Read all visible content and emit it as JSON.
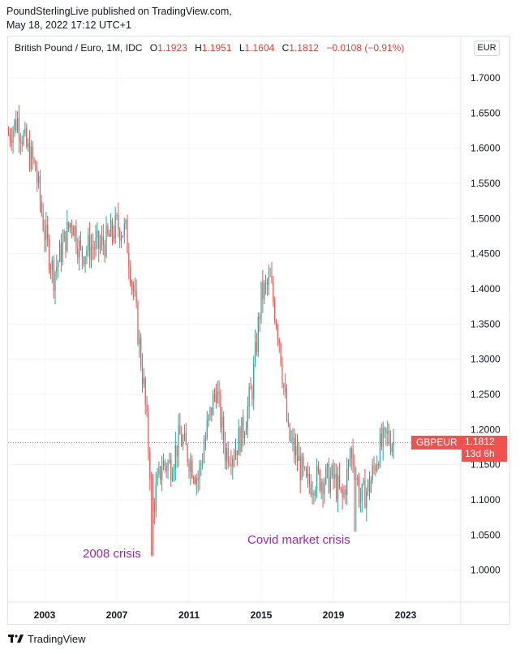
{
  "header": {
    "line1": "PoundSterlingLive published on TradingView.com,",
    "line2": "May 18, 2022 17:12 UTC+1"
  },
  "legend": {
    "symbol": "British Pound / Euro, 1M, IDC",
    "o_label": "O",
    "o_value": "1.1923",
    "h_label": "H",
    "h_value": "1.1951",
    "l_label": "L",
    "l_value": "1.1604",
    "c_label": "C",
    "c_value": "1.1812",
    "change": "−0.0108 (−0.91%)"
  },
  "currency_button": "EUR",
  "price_tag": {
    "symbol": "GBPEUR",
    "price": "1.1812",
    "countdown": "13d 6h"
  },
  "annotations": {
    "crisis_2008": "2008 crisis",
    "covid": "Covid market crisis"
  },
  "footer": {
    "brand": "TradingView"
  },
  "colors": {
    "up": "#26a69a",
    "down": "#ef5350",
    "annotation": "#9c27b0",
    "grid": "#f0f3fa"
  },
  "chart_data": {
    "type": "candlestick",
    "title": "",
    "ylim": [
      0.94,
      1.75
    ],
    "y_ticks": [
      "1.7000",
      "1.6500",
      "1.6000",
      "1.5500",
      "1.5000",
      "1.4500",
      "1.4000",
      "1.3500",
      "1.3000",
      "1.2500",
      "1.2000",
      "1.1500",
      "1.1000",
      "1.0500",
      "1.0000"
    ],
    "x_ticks": [
      "2003",
      "2007",
      "2011",
      "2015",
      "2019",
      "2023"
    ],
    "current_price": 1.1812,
    "series": [
      {
        "x": 2001.0,
        "close": 1.62
      },
      {
        "x": 2001.5,
        "close": 1.64
      },
      {
        "x": 2002.0,
        "close": 1.6
      },
      {
        "x": 2002.5,
        "close": 1.57
      },
      {
        "x": 2003.0,
        "close": 1.48
      },
      {
        "x": 2003.5,
        "close": 1.42
      },
      {
        "x": 2004.0,
        "close": 1.46
      },
      {
        "x": 2004.5,
        "close": 1.5
      },
      {
        "x": 2005.0,
        "close": 1.45
      },
      {
        "x": 2005.5,
        "close": 1.46
      },
      {
        "x": 2006.0,
        "close": 1.46
      },
      {
        "x": 2006.5,
        "close": 1.47
      },
      {
        "x": 2007.0,
        "close": 1.49
      },
      {
        "x": 2007.5,
        "close": 1.48
      },
      {
        "x": 2008.0,
        "close": 1.38
      },
      {
        "x": 2008.5,
        "close": 1.26
      },
      {
        "x": 2009.0,
        "close": 1.09
      },
      {
        "x": 2009.5,
        "close": 1.15
      },
      {
        "x": 2010.0,
        "close": 1.15
      },
      {
        "x": 2010.5,
        "close": 1.19
      },
      {
        "x": 2011.0,
        "close": 1.16
      },
      {
        "x": 2011.5,
        "close": 1.13
      },
      {
        "x": 2012.0,
        "close": 1.2
      },
      {
        "x": 2012.5,
        "close": 1.26
      },
      {
        "x": 2013.0,
        "close": 1.17
      },
      {
        "x": 2013.5,
        "close": 1.17
      },
      {
        "x": 2014.0,
        "close": 1.2
      },
      {
        "x": 2014.5,
        "close": 1.26
      },
      {
        "x": 2015.0,
        "close": 1.39
      },
      {
        "x": 2015.5,
        "close": 1.41
      },
      {
        "x": 2016.0,
        "close": 1.33
      },
      {
        "x": 2016.5,
        "close": 1.19
      },
      {
        "x": 2017.0,
        "close": 1.16
      },
      {
        "x": 2017.5,
        "close": 1.12
      },
      {
        "x": 2018.0,
        "close": 1.13
      },
      {
        "x": 2018.5,
        "close": 1.13
      },
      {
        "x": 2019.0,
        "close": 1.13
      },
      {
        "x": 2019.5,
        "close": 1.1
      },
      {
        "x": 2020.0,
        "close": 1.17
      },
      {
        "x": 2020.5,
        "close": 1.1
      },
      {
        "x": 2021.0,
        "close": 1.12
      },
      {
        "x": 2021.5,
        "close": 1.17
      },
      {
        "x": 2022.0,
        "close": 1.19
      },
      {
        "x": 2022.37,
        "close": 1.1812
      }
    ],
    "annotated_points": [
      {
        "label": "2008 crisis",
        "x": 2008.95,
        "low": 1.02
      },
      {
        "label": "Covid market crisis",
        "x": 2020.2,
        "low": 1.055
      }
    ]
  }
}
